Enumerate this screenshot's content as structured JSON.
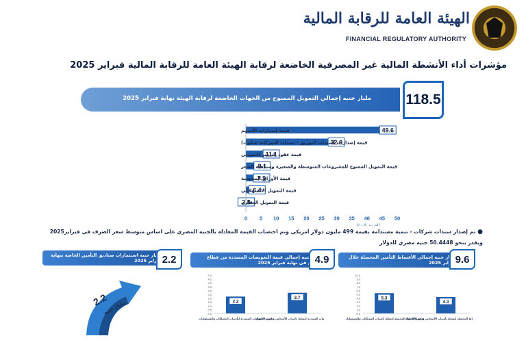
{
  "header": {
    "authority_ar": "الهيئة العامة للرقابة المالية",
    "authority_en": "FINANCIAL REGULATORY AUTHORITY",
    "title": "مؤشرات أداء الأنشطة المالية غير المصرفية الخاضعة لرقابة الهيئة العامة للرقابة المالية فبراير 2025"
  },
  "total": {
    "value": "118.5",
    "label": "مليار جنيه إجمالي التمويل الممنوح من الجهات الخاضعة لرقابة الهيئة نهاية فبراير 2025"
  },
  "chart_data": [
    {
      "type": "bar",
      "orientation": "horizontal",
      "categories": [
        "قيمة إصدارات الأسهم",
        "قيمة إصدارات (سندات التوريق - سندات الشركات-صكوك)",
        "قيمة عقود التأجير التمويلي",
        "قيمة التمويل الممنوح للمشروعات المتوسطة والصغيرة ومتناهية الصغر",
        "قيمة الأوراق المخصمة",
        "قيمة التمويل الاستهلاكي",
        "قيمة التمويل العقاري"
      ],
      "values": [
        49.6,
        32.6,
        11.1,
        8.1,
        7.9,
        6.4,
        2.8
      ],
      "value_labels": [
        "49.6",
        "32.6",
        "11.1",
        "8.1",
        "7.9",
        "6.4",
        "2.8"
      ],
      "xlabel": "القيمة بالمليار",
      "xlim": [
        0,
        50
      ],
      "xticks": [
        "0",
        "5",
        "10",
        "15",
        "20",
        "25",
        "30",
        "35",
        "40",
        "45",
        "50"
      ],
      "grid": false,
      "color": "#1f5fad"
    },
    {
      "type": "bar",
      "categories": [
        "قيمة الأقساط المحصلة لنشاط تأمينات الممتلكات والمسئوليات",
        "قيمة الأقساط المحصلة لنشاط تأمينات الأشخاص وتكوين الأموال"
      ],
      "values": [
        5.3,
        4.3
      ],
      "value_labels": [
        "5.3",
        "4.3"
      ],
      "ylim": [
        0,
        10
      ],
      "yticks": [
        "0.0",
        "1.0",
        "2.0",
        "3.0",
        "4.0",
        "5.0",
        "6.0",
        "7.0",
        "8.0",
        "9.0",
        "10.0"
      ]
    },
    {
      "type": "bar",
      "categories": [
        "قيمة التعويضات المسددة لتأمينات الممتلكات والمسئوليات",
        "قيمة التعويضات المسددة لنشاط تأمينات الأشخاص وتكوين الأموال"
      ],
      "values": [
        2.2,
        2.7
      ],
      "value_labels": [
        "2.2",
        "2.7"
      ],
      "ylim": [
        0,
        5
      ],
      "yticks": [
        "0.0",
        "0.5",
        "1.0",
        "1.5",
        "2.0",
        "2.5",
        "3.0",
        "3.5",
        "4.0",
        "4.5",
        "5.0"
      ]
    }
  ],
  "note": "تم إصدار سندات شركات - تنمية مستدامة بقيمة 499 مليون دولار امريكي وتم احتساب القيمة المعادلة بالجنيه المصري على اساس متوسط سعر الصرف في فبراير2025 ويقدر بنحو 50.4448 جنيه مصري للدولار",
  "boxes": {
    "premiums": {
      "value": "9.6",
      "label": "مليار جنيه إجمالي الأقساط التأمين المحصلة خلال فبراير 2025"
    },
    "claims": {
      "value": "4.9",
      "label": "مليار جنيه إجمالي قيمة التعويضات المسددة من قطاع التأمين في نهاية فبراير 2025"
    },
    "funds": {
      "value": "2.2",
      "label": "مليار جنيه استثمارات صناديق التأمين الخاصة بنهاية فبراير 2025"
    }
  },
  "arrow": {
    "value": "2.2",
    "unit": "مليار جنيه"
  },
  "colors": {
    "primary": "#1f5fad",
    "accent": "#c49a2f",
    "text": "#0e1e3e"
  }
}
